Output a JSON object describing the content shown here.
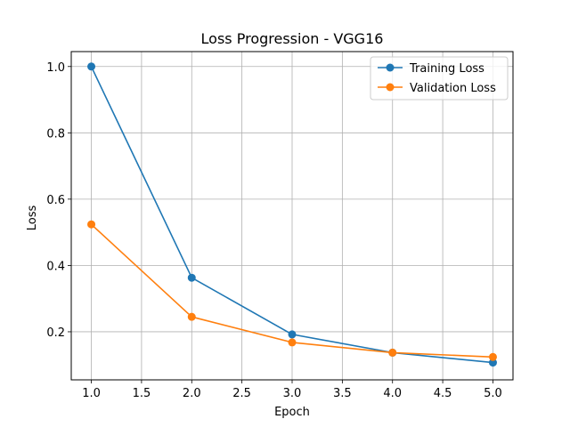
{
  "chart_data": {
    "type": "line",
    "title": "Loss Progression - VGG16",
    "xlabel": "Epoch",
    "ylabel": "Loss",
    "x": [
      1,
      2,
      3,
      4,
      5
    ],
    "xlim": [
      0.8,
      5.2
    ],
    "ylim": [
      0.055,
      1.045
    ],
    "xticks": [
      1.0,
      1.5,
      2.0,
      2.5,
      3.0,
      3.5,
      4.0,
      4.5,
      5.0
    ],
    "yticks": [
      0.2,
      0.4,
      0.6,
      0.8,
      1.0
    ],
    "grid": true,
    "legend_position": "top-right",
    "series": [
      {
        "name": "Training Loss",
        "color": "#1f77b4",
        "values": [
          1.0,
          0.363,
          0.192,
          0.137,
          0.107
        ]
      },
      {
        "name": "Validation Loss",
        "color": "#ff7f0e",
        "values": [
          0.524,
          0.245,
          0.168,
          0.137,
          0.124
        ]
      }
    ]
  }
}
